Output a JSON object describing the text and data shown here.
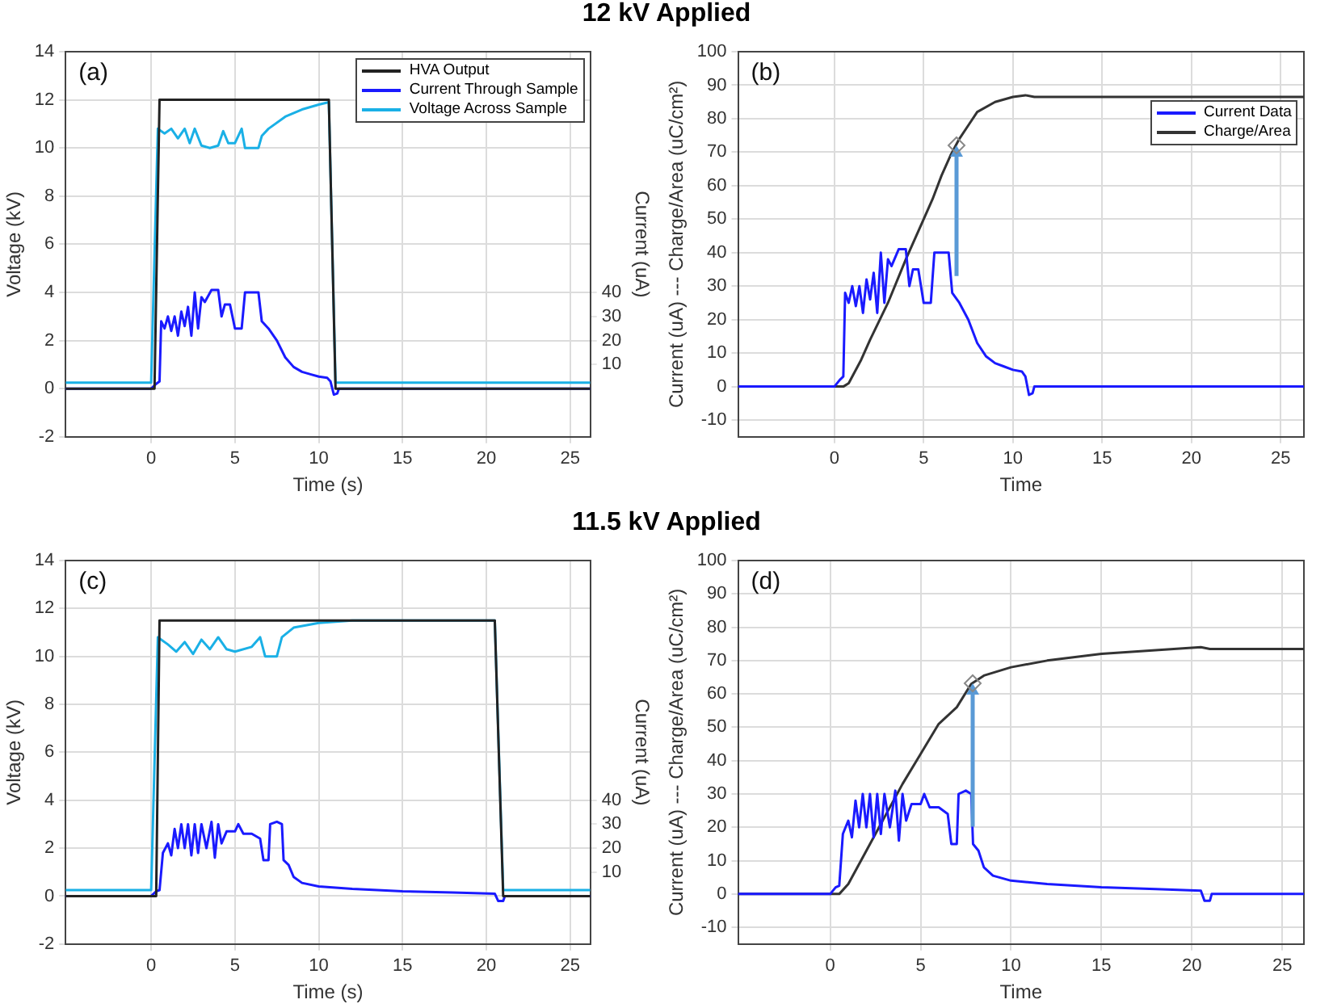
{
  "chart_data": [
    {
      "type": "line",
      "title": "12 kV Applied",
      "xlabel": "Time (s)",
      "ylabel": "Voltage (kV)",
      "y2label": "Current (uA)",
      "annotations": [
        "(a)"
      ],
      "xlim": [
        -5.1,
        26.2
      ],
      "xticks": [
        0,
        5,
        10,
        15,
        20,
        25
      ],
      "ylim": [
        -2,
        14
      ],
      "yticks": [
        -2,
        0,
        2,
        4,
        6,
        8,
        10,
        12,
        14
      ],
      "y2lim": [
        -20,
        140
      ],
      "y2ticks": [
        10,
        20,
        30,
        40
      ],
      "grid": true,
      "legend": "top right",
      "marker": "none",
      "line_style": "solid",
      "series": [
        {
          "name": "HVA Output",
          "color": "#222222",
          "x": [
            -5.1,
            0.2,
            0.5,
            10.6,
            11.0,
            26.2
          ],
          "values": [
            0,
            0,
            12,
            12,
            0,
            0
          ]
        },
        {
          "name": "Current Through Sample",
          "color": "#1a1aff",
          "axis": "y2",
          "x": [
            -5.1,
            0,
            0.3,
            0.5,
            0.6,
            0.8,
            1,
            1.2,
            1.4,
            1.6,
            1.8,
            2,
            2.2,
            2.4,
            2.6,
            2.8,
            3,
            3.2,
            3.6,
            4,
            4.2,
            4.4,
            4.7,
            5,
            5.4,
            5.6,
            6,
            6.4,
            6.6,
            7,
            7.5,
            8,
            8.5,
            9,
            9.5,
            10,
            10.5,
            10.7,
            10.9,
            11.1,
            11.2,
            26.2
          ],
          "values": [
            0,
            0,
            2,
            3,
            28,
            25,
            30,
            24,
            30,
            22,
            32,
            26,
            34,
            22,
            40,
            25,
            38,
            36,
            41,
            41,
            30,
            35,
            35,
            25,
            25,
            40,
            40,
            40,
            28,
            25,
            20,
            13,
            9,
            7,
            6,
            5,
            4.5,
            3,
            -2.5,
            -2,
            0,
            0
          ]
        },
        {
          "name": "Voltage Across Sample",
          "color": "#1ab0e6",
          "x": [
            -5.1,
            0,
            0.4,
            0.8,
            1.2,
            1.6,
            2,
            2.3,
            2.6,
            3,
            3.5,
            4,
            4.3,
            4.6,
            5,
            5.4,
            5.6,
            6.4,
            6.6,
            7,
            8,
            9,
            10,
            10.6,
            11.0,
            26.2
          ],
          "values": [
            0.25,
            0.25,
            10.8,
            10.6,
            10.8,
            10.4,
            10.8,
            10.2,
            10.8,
            10.1,
            10.0,
            10.1,
            10.7,
            10.2,
            10.2,
            10.8,
            10.0,
            10.0,
            10.5,
            10.8,
            11.3,
            11.6,
            11.8,
            11.9,
            0.25,
            0.25
          ]
        }
      ]
    },
    {
      "type": "line",
      "xlabel": "Time",
      "ylabel": "Current (uA) --- Charge/Area (uC/cm²)",
      "annotations": [
        "(b)"
      ],
      "xlim": [
        -5.4,
        26.3
      ],
      "xticks": [
        0,
        5,
        10,
        15,
        20,
        25
      ],
      "ylim": [
        -15,
        100
      ],
      "yticks": [
        -10,
        0,
        10,
        20,
        30,
        40,
        50,
        60,
        70,
        80,
        90,
        100
      ],
      "grid": true,
      "legend": "top right",
      "marker": "none",
      "line_style": "solid",
      "series": [
        {
          "name": "Current Data",
          "color": "#1a1aff",
          "x": [
            -5.4,
            0,
            0.3,
            0.5,
            0.6,
            0.8,
            1,
            1.2,
            1.4,
            1.6,
            1.8,
            2,
            2.2,
            2.4,
            2.6,
            2.8,
            3,
            3.2,
            3.6,
            4,
            4.2,
            4.4,
            4.7,
            5,
            5.4,
            5.6,
            6,
            6.4,
            6.6,
            7,
            7.5,
            8,
            8.5,
            9,
            9.5,
            10,
            10.5,
            10.7,
            10.9,
            11.1,
            11.2,
            26.3
          ],
          "values": [
            0,
            0,
            2,
            3,
            28,
            25,
            30,
            24,
            30,
            22,
            32,
            26,
            34,
            22,
            40,
            25,
            38,
            36,
            41,
            41,
            30,
            35,
            35,
            25,
            25,
            40,
            40,
            40,
            28,
            25,
            20,
            13,
            9,
            7,
            6,
            5,
            4.5,
            3,
            -2.5,
            -2,
            0,
            0
          ]
        },
        {
          "name": "Charge/Area",
          "color": "#333333",
          "x": [
            -5.4,
            0.5,
            0.8,
            1.5,
            2,
            3,
            4,
            5,
            5.5,
            6,
            6.5,
            7,
            7.5,
            8,
            9,
            10,
            10.7,
            11.2,
            26.3
          ],
          "values": [
            0,
            0,
            1,
            8,
            14,
            25,
            38,
            50,
            56,
            63,
            69,
            74,
            78,
            82,
            85,
            86.5,
            87,
            86.5,
            86.5
          ]
        }
      ]
    },
    {
      "type": "line",
      "title": "11.5 kV Applied",
      "xlabel": "Time (s)",
      "ylabel": "Voltage (kV)",
      "y2label": "Current (uA)",
      "annotations": [
        "(c)"
      ],
      "xlim": [
        -5.1,
        26.2
      ],
      "xticks": [
        0,
        5,
        10,
        15,
        20,
        25
      ],
      "ylim": [
        -2,
        14
      ],
      "yticks": [
        -2,
        0,
        2,
        4,
        6,
        8,
        10,
        12,
        14
      ],
      "y2lim": [
        -20,
        140
      ],
      "y2ticks": [
        10,
        20,
        30,
        40
      ],
      "grid": true,
      "marker": "none",
      "line_style": "solid",
      "series": [
        {
          "color": "#222222",
          "x": [
            -5.1,
            0.3,
            0.5,
            20.5,
            21,
            26.2
          ],
          "values": [
            0,
            0,
            11.5,
            11.5,
            0,
            0
          ]
        },
        {
          "color": "#1a1aff",
          "axis": "y2",
          "x": [
            -5.1,
            0,
            0.3,
            0.5,
            0.7,
            1,
            1.2,
            1.4,
            1.6,
            1.8,
            2,
            2.2,
            2.4,
            2.6,
            2.8,
            3,
            3.3,
            3.6,
            3.8,
            4,
            4.2,
            4.5,
            5,
            5.2,
            5.5,
            6,
            6.5,
            6.7,
            7,
            7.1,
            7.5,
            7.8,
            7.9,
            8.2,
            8.5,
            9,
            10,
            12,
            15,
            18,
            20.5,
            20.7,
            21,
            21.1,
            26.2
          ],
          "values": [
            0,
            0,
            2,
            2.5,
            18,
            22,
            17,
            28,
            20,
            30,
            20,
            30,
            17,
            30,
            18,
            30,
            20,
            31,
            16,
            30,
            22,
            27,
            27,
            30,
            26,
            26,
            24,
            15,
            15,
            30,
            31,
            30,
            15,
            13,
            8,
            5.5,
            4,
            3,
            2,
            1.5,
            1,
            -2,
            -2,
            0,
            0
          ]
        },
        {
          "color": "#1ab0e6",
          "x": [
            -5.1,
            0,
            0.4,
            1,
            1.5,
            2,
            2.5,
            3,
            3.5,
            4,
            4.5,
            5,
            6,
            6.5,
            6.8,
            7.5,
            7.8,
            8.5,
            10,
            12,
            20.5,
            21,
            26.2
          ],
          "values": [
            0.25,
            0.25,
            10.8,
            10.5,
            10.2,
            10.6,
            10.1,
            10.7,
            10.3,
            10.8,
            10.3,
            10.2,
            10.4,
            10.8,
            10.0,
            10.0,
            10.8,
            11.2,
            11.4,
            11.5,
            11.5,
            0.25,
            0.25
          ]
        }
      ]
    },
    {
      "type": "line",
      "xlabel": "Time",
      "ylabel": "Current (uA) --- Charge/Area (uC/cm²)",
      "annotations": [
        "(d)"
      ],
      "xlim": [
        -5.1,
        26.2
      ],
      "xticks": [
        0,
        5,
        10,
        15,
        20,
        25
      ],
      "ylim": [
        -15,
        100
      ],
      "yticks": [
        -10,
        0,
        10,
        20,
        30,
        40,
        50,
        60,
        70,
        80,
        90,
        100
      ],
      "grid": true,
      "marker": "none",
      "line_style": "solid",
      "series": [
        {
          "color": "#1a1aff",
          "x": [
            -5.1,
            0,
            0.3,
            0.5,
            0.7,
            1,
            1.2,
            1.4,
            1.6,
            1.8,
            2,
            2.2,
            2.4,
            2.6,
            2.8,
            3,
            3.3,
            3.6,
            3.8,
            4,
            4.2,
            4.5,
            5,
            5.2,
            5.5,
            6,
            6.5,
            6.7,
            7,
            7.1,
            7.5,
            7.8,
            7.9,
            8.2,
            8.5,
            9,
            10,
            12,
            15,
            18,
            20.5,
            20.7,
            21,
            21.1,
            26.2
          ],
          "values": [
            0,
            0,
            2,
            2.5,
            18,
            22,
            17,
            28,
            20,
            30,
            20,
            30,
            17,
            30,
            18,
            30,
            20,
            31,
            16,
            30,
            22,
            27,
            27,
            30,
            26,
            26,
            24,
            15,
            15,
            30,
            31,
            30,
            15,
            13,
            8,
            5.5,
            4,
            3,
            2,
            1.5,
            1,
            -2,
            -2,
            0,
            0
          ]
        },
        {
          "color": "#333333",
          "x": [
            -5.1,
            0.5,
            1,
            2,
            3,
            4,
            5,
            6,
            7,
            7.8,
            8.5,
            10,
            12,
            15,
            20.5,
            21,
            26.2
          ],
          "values": [
            0,
            0,
            3,
            13,
            23,
            33,
            42,
            51,
            56,
            63,
            65.5,
            68,
            70,
            72,
            74,
            73.5,
            73.5
          ]
        }
      ]
    }
  ]
}
